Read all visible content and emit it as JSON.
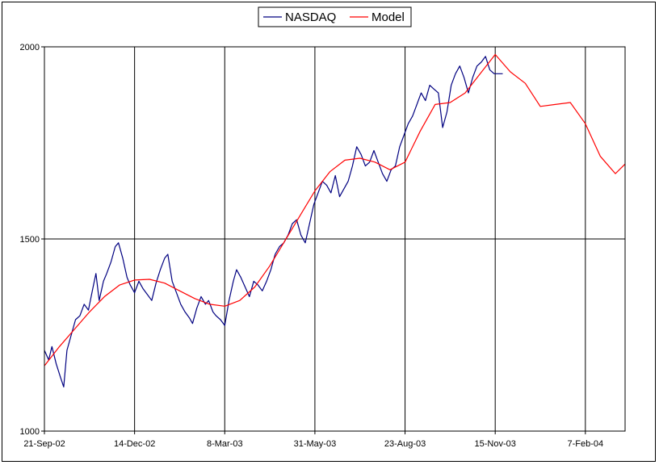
{
  "chart_data": {
    "type": "line",
    "title": "",
    "xlabel": "",
    "ylabel": "",
    "x_tick_labels": [
      "21-Sep-02",
      "14-Dec-02",
      "8-Mar-03",
      "31-May-03",
      "23-Aug-03",
      "15-Nov-03",
      "7-Feb-04"
    ],
    "x_range": [
      "21-Sep-02",
      "15-Mar-04"
    ],
    "ylim": [
      1000,
      2000
    ],
    "y_ticks": [
      1000,
      1500,
      2000
    ],
    "grid": {
      "horizontal": true,
      "vertical": true
    },
    "legend": {
      "placement": "top-center",
      "entries": [
        "NASDAQ",
        "Model"
      ]
    },
    "series": [
      {
        "name": "NASDAQ",
        "color": "#000080",
        "points": [
          [
            "21-Sep-02",
            1210
          ],
          [
            "25-Sep-02",
            1185
          ],
          [
            "28-Sep-02",
            1220
          ],
          [
            "2-Oct-02",
            1175
          ],
          [
            "6-Oct-02",
            1140
          ],
          [
            "9-Oct-02",
            1115
          ],
          [
            "12-Oct-02",
            1210
          ],
          [
            "16-Oct-02",
            1250
          ],
          [
            "20-Oct-02",
            1290
          ],
          [
            "24-Oct-02",
            1300
          ],
          [
            "28-Oct-02",
            1330
          ],
          [
            "1-Nov-02",
            1315
          ],
          [
            "5-Nov-02",
            1370
          ],
          [
            "8-Nov-02",
            1410
          ],
          [
            "11-Nov-02",
            1340
          ],
          [
            "15-Nov-02",
            1390
          ],
          [
            "18-Nov-02",
            1410
          ],
          [
            "22-Nov-02",
            1440
          ],
          [
            "26-Nov-02",
            1480
          ],
          [
            "29-Nov-02",
            1490
          ],
          [
            "3-Dec-02",
            1450
          ],
          [
            "7-Dec-02",
            1400
          ],
          [
            "10-Dec-02",
            1380
          ],
          [
            "14-Dec-02",
            1360
          ],
          [
            "18-Dec-02",
            1390
          ],
          [
            "22-Dec-02",
            1370
          ],
          [
            "26-Dec-02",
            1355
          ],
          [
            "30-Dec-02",
            1340
          ],
          [
            "3-Jan-03",
            1385
          ],
          [
            "7-Jan-03",
            1420
          ],
          [
            "11-Jan-03",
            1450
          ],
          [
            "14-Jan-03",
            1460
          ],
          [
            "18-Jan-03",
            1390
          ],
          [
            "22-Jan-03",
            1360
          ],
          [
            "26-Jan-03",
            1330
          ],
          [
            "30-Jan-03",
            1310
          ],
          [
            "3-Feb-03",
            1295
          ],
          [
            "6-Feb-03",
            1280
          ],
          [
            "10-Feb-03",
            1320
          ],
          [
            "14-Feb-03",
            1350
          ],
          [
            "18-Feb-03",
            1330
          ],
          [
            "21-Feb-03",
            1340
          ],
          [
            "25-Feb-03",
            1310
          ],
          [
            "28-Feb-03",
            1300
          ],
          [
            "4-Mar-03",
            1290
          ],
          [
            "8-Mar-03",
            1275
          ],
          [
            "12-Mar-03",
            1340
          ],
          [
            "16-Mar-03",
            1390
          ],
          [
            "19-Mar-03",
            1420
          ],
          [
            "23-Mar-03",
            1400
          ],
          [
            "27-Mar-03",
            1375
          ],
          [
            "31-Mar-03",
            1350
          ],
          [
            "4-Apr-03",
            1390
          ],
          [
            "8-Apr-03",
            1380
          ],
          [
            "12-Apr-03",
            1365
          ],
          [
            "16-Apr-03",
            1390
          ],
          [
            "20-Apr-03",
            1420
          ],
          [
            "24-Apr-03",
            1460
          ],
          [
            "28-Apr-03",
            1480
          ],
          [
            "2-May-03",
            1490
          ],
          [
            "6-May-03",
            1510
          ],
          [
            "10-May-03",
            1540
          ],
          [
            "14-May-03",
            1550
          ],
          [
            "18-May-03",
            1510
          ],
          [
            "22-May-03",
            1490
          ],
          [
            "26-May-03",
            1540
          ],
          [
            "30-May-03",
            1590
          ],
          [
            "3-Jun-03",
            1620
          ],
          [
            "7-Jun-03",
            1650
          ],
          [
            "11-Jun-03",
            1640
          ],
          [
            "15-Jun-03",
            1620
          ],
          [
            "19-Jun-03",
            1665
          ],
          [
            "23-Jun-03",
            1610
          ],
          [
            "27-Jun-03",
            1630
          ],
          [
            "1-Jul-03",
            1650
          ],
          [
            "5-Jul-03",
            1690
          ],
          [
            "9-Jul-03",
            1740
          ],
          [
            "13-Jul-03",
            1720
          ],
          [
            "17-Jul-03",
            1690
          ],
          [
            "21-Jul-03",
            1700
          ],
          [
            "25-Jul-03",
            1730
          ],
          [
            "29-Jul-03",
            1700
          ],
          [
            "2-Aug-03",
            1670
          ],
          [
            "6-Aug-03",
            1650
          ],
          [
            "10-Aug-03",
            1680
          ],
          [
            "14-Aug-03",
            1690
          ],
          [
            "18-Aug-03",
            1740
          ],
          [
            "22-Aug-03",
            1770
          ],
          [
            "26-Aug-03",
            1800
          ],
          [
            "30-Aug-03",
            1820
          ],
          [
            "3-Sep-03",
            1850
          ],
          [
            "7-Sep-03",
            1880
          ],
          [
            "11-Sep-03",
            1860
          ],
          [
            "15-Sep-03",
            1900
          ],
          [
            "19-Sep-03",
            1890
          ],
          [
            "23-Sep-03",
            1880
          ],
          [
            "27-Sep-03",
            1790
          ],
          [
            "1-Oct-03",
            1830
          ],
          [
            "5-Oct-03",
            1900
          ],
          [
            "9-Oct-03",
            1930
          ],
          [
            "13-Oct-03",
            1950
          ],
          [
            "17-Oct-03",
            1920
          ],
          [
            "21-Oct-03",
            1880
          ],
          [
            "25-Oct-03",
            1920
          ],
          [
            "29-Oct-03",
            1950
          ],
          [
            "2-Nov-03",
            1960
          ],
          [
            "6-Nov-03",
            1975
          ],
          [
            "10-Nov-03",
            1940
          ],
          [
            "14-Nov-03",
            1930
          ],
          [
            "18-Nov-03",
            1930
          ],
          [
            "22-Nov-03",
            1930
          ]
        ]
      },
      {
        "name": "Model",
        "color": "#ff0000",
        "points": [
          [
            "21-Sep-02",
            1170
          ],
          [
            "5-Oct-02",
            1220
          ],
          [
            "19-Oct-02",
            1265
          ],
          [
            "2-Nov-02",
            1310
          ],
          [
            "16-Nov-02",
            1350
          ],
          [
            "30-Nov-02",
            1380
          ],
          [
            "14-Dec-02",
            1393
          ],
          [
            "28-Dec-02",
            1395
          ],
          [
            "11-Jan-03",
            1385
          ],
          [
            "25-Jan-03",
            1365
          ],
          [
            "8-Feb-03",
            1345
          ],
          [
            "22-Feb-03",
            1330
          ],
          [
            "8-Mar-03",
            1325
          ],
          [
            "22-Mar-03",
            1340
          ],
          [
            "5-Apr-03",
            1375
          ],
          [
            "19-Apr-03",
            1430
          ],
          [
            "3-May-03",
            1495
          ],
          [
            "17-May-03",
            1560
          ],
          [
            "31-May-03",
            1625
          ],
          [
            "14-Jun-03",
            1675
          ],
          [
            "28-Jun-03",
            1705
          ],
          [
            "12-Jul-03",
            1710
          ],
          [
            "26-Jul-03",
            1700
          ],
          [
            "9-Aug-03",
            1680
          ],
          [
            "23-Aug-03",
            1700
          ],
          [
            "6-Sep-03",
            1780
          ],
          [
            "20-Sep-03",
            1850
          ],
          [
            "4-Oct-03",
            1855
          ],
          [
            "18-Oct-03",
            1880
          ],
          [
            "1-Nov-03",
            1930
          ],
          [
            "15-Nov-03",
            1980
          ],
          [
            "29-Nov-03",
            1935
          ],
          [
            "13-Dec-03",
            1905
          ],
          [
            "27-Dec-03",
            1845
          ],
          [
            "10-Jan-04",
            1850
          ],
          [
            "24-Jan-04",
            1855
          ],
          [
            "7-Feb-04",
            1800
          ],
          [
            "21-Feb-04",
            1715
          ],
          [
            "6-Mar-04",
            1670
          ],
          [
            "15-Mar-04",
            1695
          ]
        ]
      }
    ]
  }
}
